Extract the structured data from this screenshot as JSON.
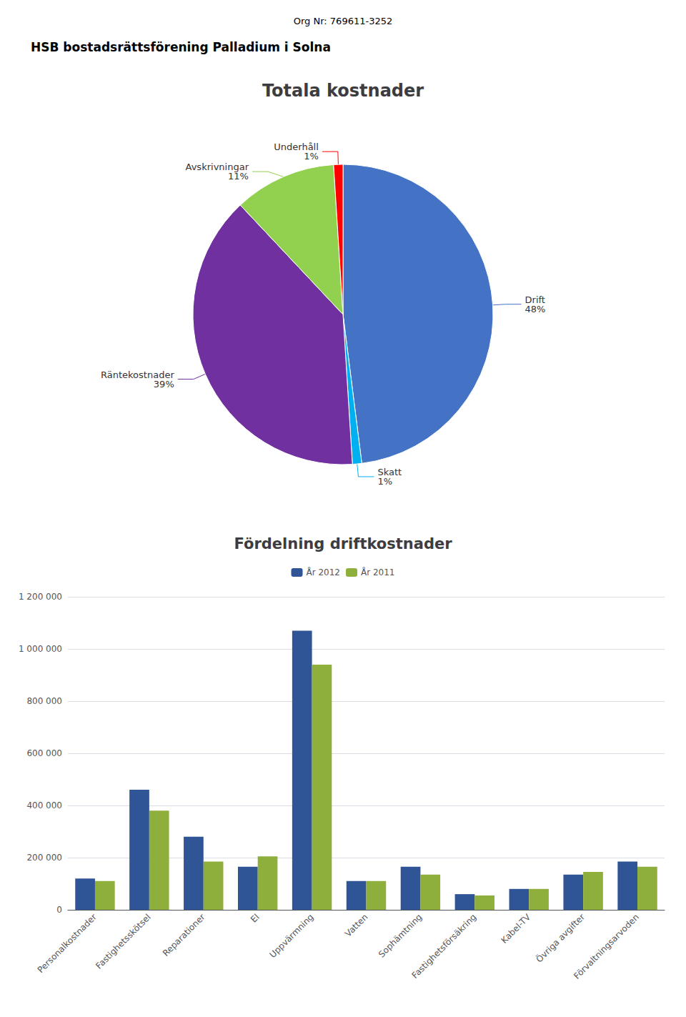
{
  "chart_data": [
    {
      "type": "pie",
      "title": "Totala kostnader",
      "annotations": [
        "Org Nr: 769611-3252",
        "HSB bostadsrättsförening Palladium i Solna"
      ],
      "categories": [
        "Drift",
        "Skatt",
        "Räntekostnader",
        "Avskrivningar",
        "Underhåll"
      ],
      "values": [
        48,
        1,
        39,
        11,
        1
      ],
      "value_labels": [
        "48%",
        "1%",
        "39%",
        "11%",
        "1%"
      ],
      "colors": [
        "#4472C4",
        "#00B0F0",
        "#7030A0",
        "#92D050",
        "#FF0000"
      ],
      "data_labels": true
    },
    {
      "type": "bar",
      "title": "Fördelning driftkostnader",
      "categories": [
        "Personalkostnader",
        "Fastighetsskötsel",
        "Reparationer",
        "El",
        "Uppvärmning",
        "Vatten",
        "Sophämtning",
        "Fastighetsförsäkring",
        "Kabel-TV",
        "Övriga avgifter",
        "Förvaltningsarvoden"
      ],
      "series": [
        {
          "name": "År 2012",
          "color": "#2F5597",
          "values": [
            120000,
            460000,
            280000,
            165000,
            1070000,
            110000,
            165000,
            60000,
            80000,
            135000,
            185000
          ]
        },
        {
          "name": "År 2011",
          "color": "#8FAF3C",
          "values": [
            110000,
            380000,
            185000,
            205000,
            940000,
            110000,
            135000,
            55000,
            80000,
            145000,
            165000
          ]
        }
      ],
      "ylim": [
        0,
        1200000
      ],
      "yticks": [
        0,
        {
          "value": 200000,
          "label": "200 000"
        },
        {
          "value": 400000,
          "label": "400 000"
        },
        {
          "value": 600000,
          "label": "600 000"
        },
        {
          "value": 800000,
          "label": "800 000"
        },
        {
          "value": 1000000,
          "label": "1 000 000"
        },
        {
          "value": 1200000,
          "label": "1 200 000"
        }
      ],
      "grid": true,
      "legend": "top"
    }
  ]
}
